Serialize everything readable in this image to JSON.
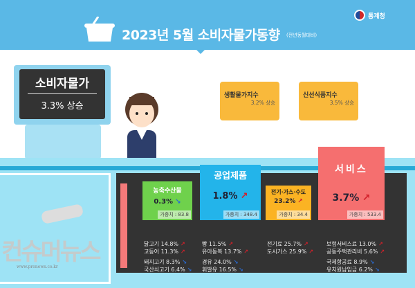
{
  "header": {
    "title": "2023년  5월 소비자물가동향",
    "subtitle": "(전년동월대비)",
    "logo": "통계청"
  },
  "headline": {
    "label": "소비자물가",
    "value": "3.3% 상승"
  },
  "baskets": [
    {
      "name": "생활물가지수",
      "value": "3.2% 상승"
    },
    {
      "name": "신선식품지수",
      "value": "3.5% 상승"
    }
  ],
  "categories": [
    {
      "name": "농축수산물",
      "pct": "0.3%",
      "direction": "down",
      "weight": "가중치 : 83.8",
      "color": "#6fd14c",
      "items": [
        {
          "t": "닭고기 14.8%",
          "d": "up"
        },
        {
          "t": "고등어 11.3%",
          "d": "up"
        },
        {
          "t": "돼지고기 8.3%",
          "d": "down"
        },
        {
          "t": "국산쇠고기 6.4%",
          "d": "down"
        }
      ]
    },
    {
      "name": "공업제품",
      "pct": "1.8%",
      "direction": "up",
      "weight": "가중치 : 348.4",
      "color": "#23b4ea",
      "items": [
        {
          "t": "빵 11.5%",
          "d": "up"
        },
        {
          "t": "유아동복 13.7%",
          "d": "up"
        },
        {
          "t": "경유 24.0%",
          "d": "down"
        },
        {
          "t": "휘발유 16.5%",
          "d": "down"
        }
      ]
    },
    {
      "name": "전기·가스·수도",
      "pct": "23.2%",
      "direction": "up",
      "weight": "가중치 : 34.4",
      "color": "#fbb323",
      "items": [
        {
          "t": "전기료 25.7%",
          "d": "up"
        },
        {
          "t": "도시가스 25.9%",
          "d": "up"
        }
      ]
    },
    {
      "name": "서비스",
      "pct": "3.7%",
      "direction": "up",
      "weight": "가중치 : 533.4",
      "color": "#f56f6f",
      "items": [
        {
          "t": "보험서비스료 13.0%",
          "d": "up"
        },
        {
          "t": "공동주택관리비 5.6%",
          "d": "up"
        },
        {
          "t": "국제항공료 8.9%",
          "d": "down"
        },
        {
          "t": "유치원납입금 6.2%",
          "d": "down"
        }
      ]
    }
  ],
  "arrows": {
    "up": "↗",
    "down": "↘"
  },
  "watermark": {
    "text": "컨슈머뉴스",
    "url": "www.pronews.co.kr"
  }
}
